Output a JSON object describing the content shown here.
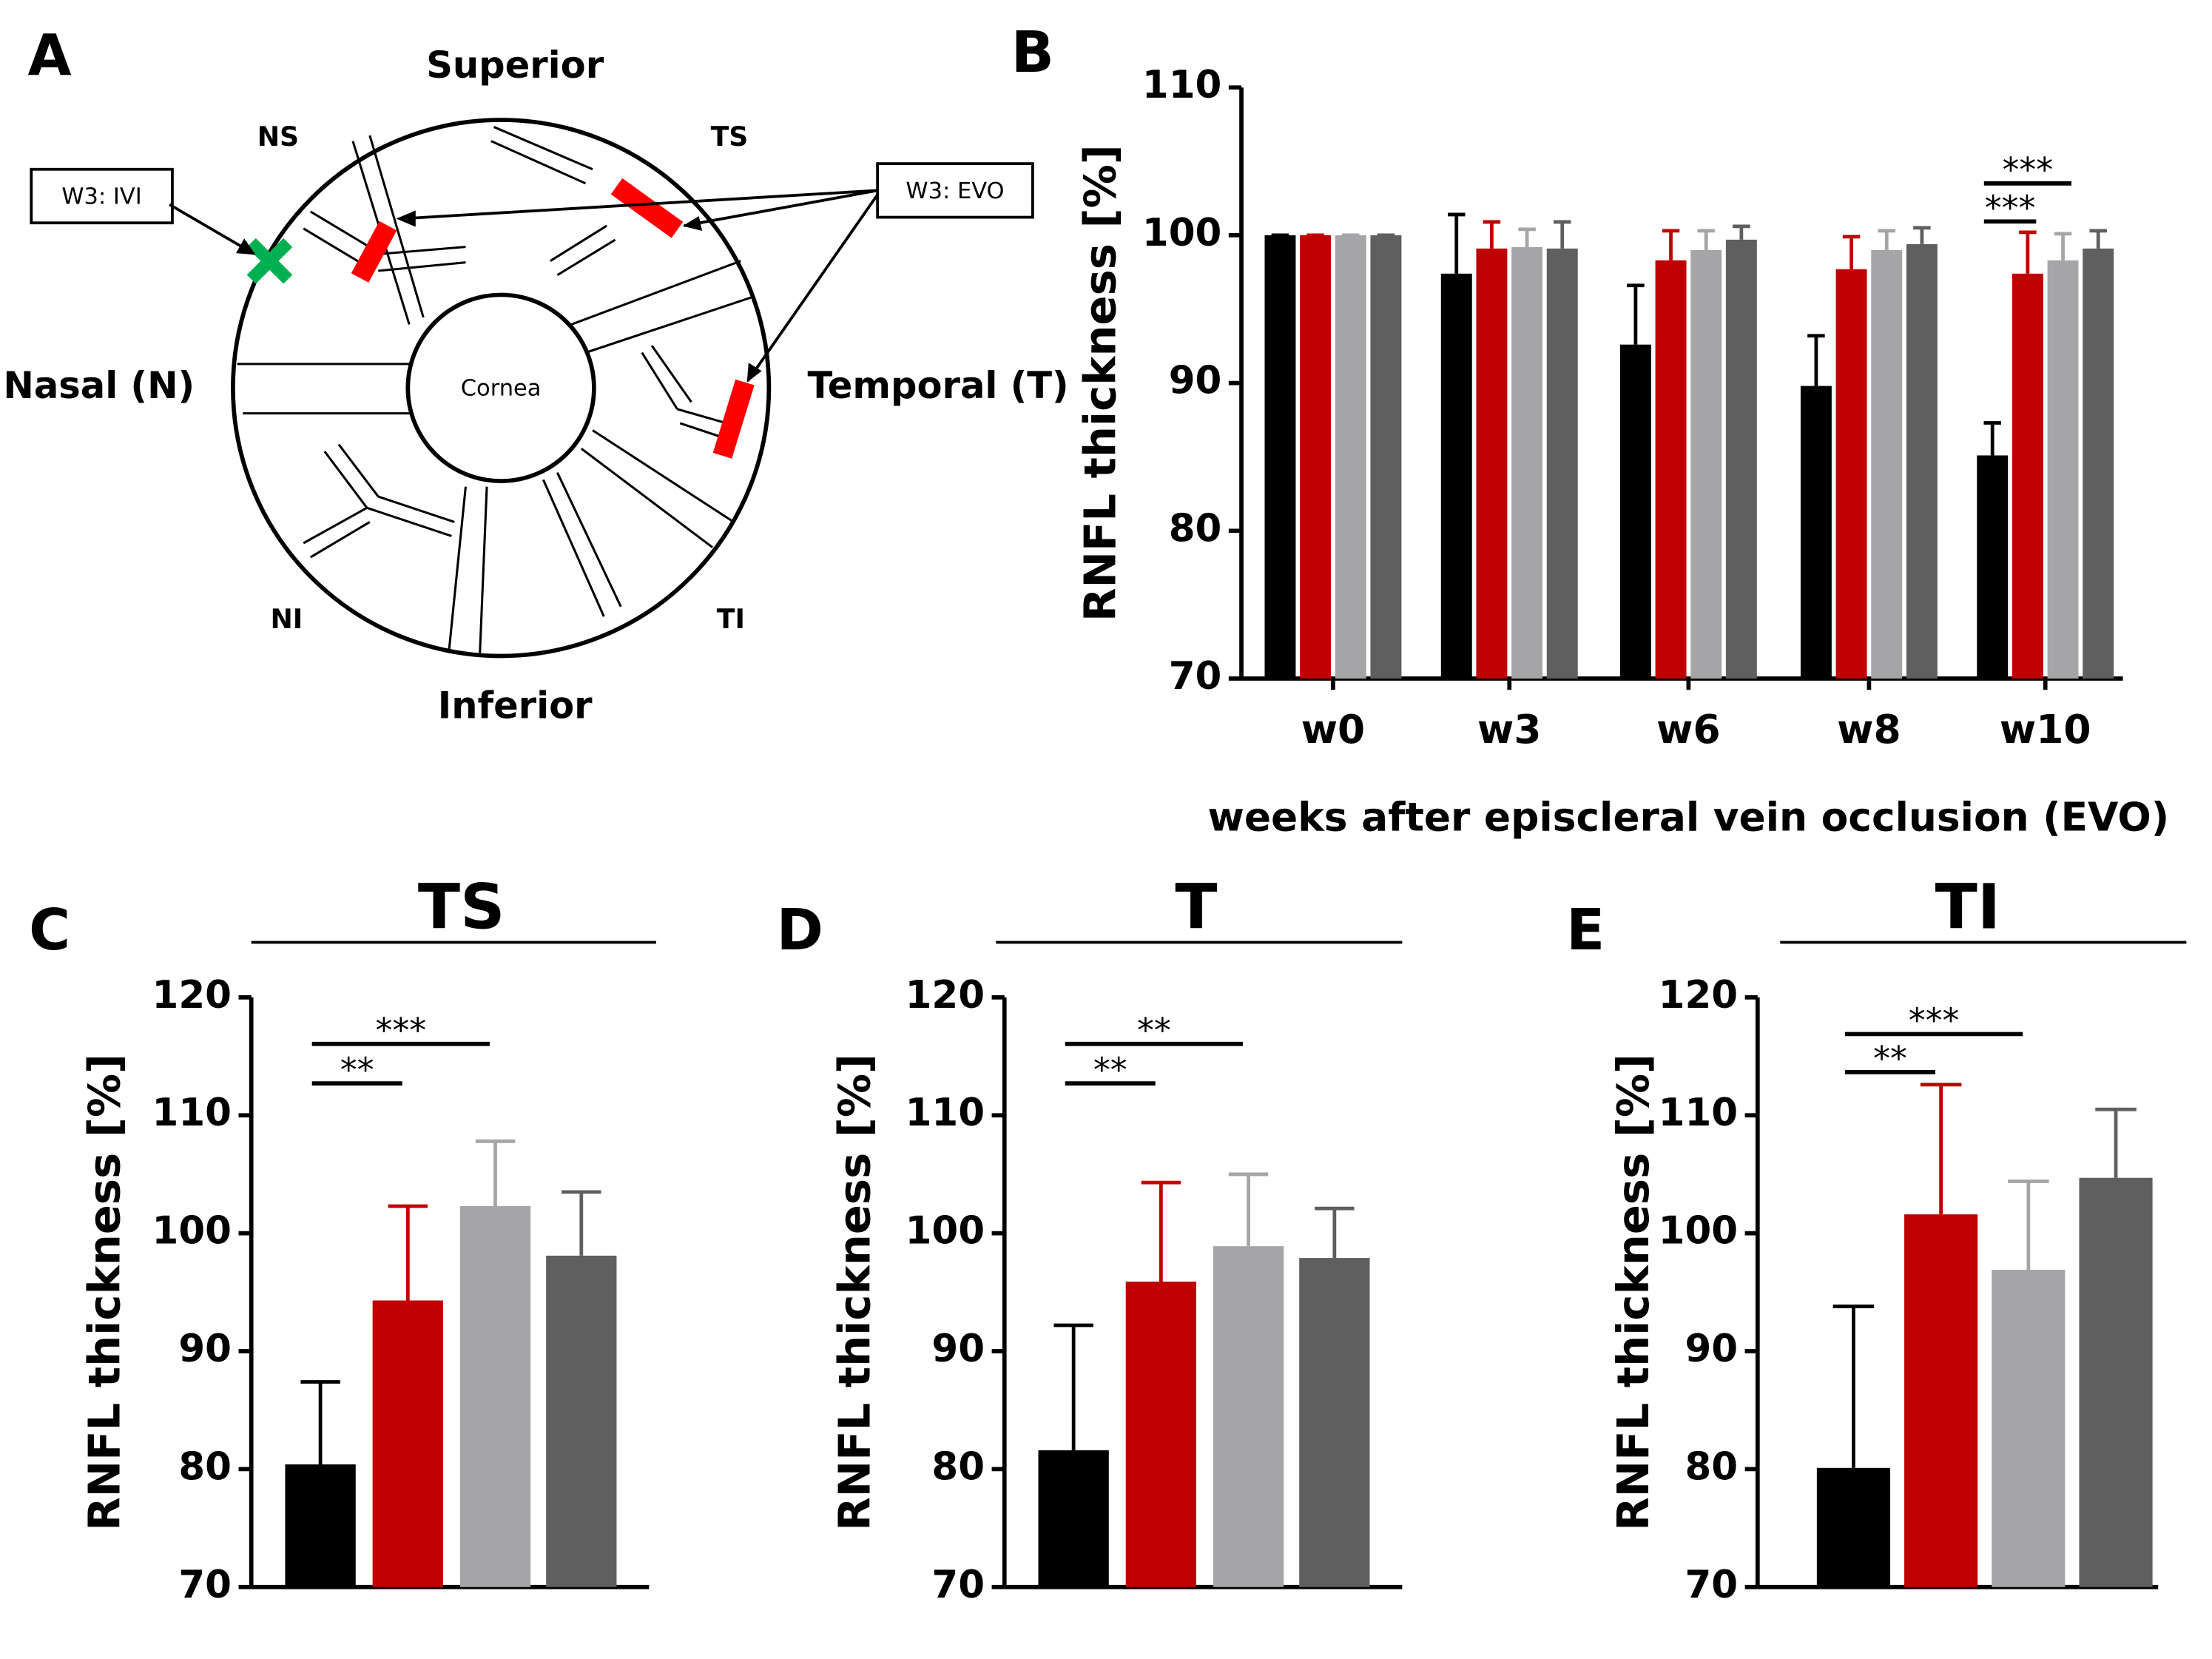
{
  "panel_labels": [
    "A",
    "B",
    "C",
    "D",
    "E"
  ],
  "diagram": {
    "labels": {
      "superior": "Superior",
      "inferior": "Inferior",
      "nasal": "Nasal (N)",
      "temporal": "Temporal (T)",
      "ns": "NS",
      "ts": "TS",
      "ni": "NI",
      "ti": "TI",
      "cornea": "Cornea"
    },
    "callouts": [
      "W3: IVI",
      "W3: EVO"
    ]
  },
  "chart_data": [
    {
      "type": "bar",
      "ylabel": "RNFL thickness [%]",
      "xlabel": "weeks after episcleral vein occlusion (EVO)",
      "categories": [
        "w0",
        "w3",
        "w6",
        "w8",
        "w10"
      ],
      "series": [
        {
          "color": "#000000",
          "values": [
            100,
            97.4,
            92.6,
            89.8,
            85.1
          ],
          "errors": [
            0,
            4,
            4,
            3.4,
            2.2
          ]
        },
        {
          "color": "#c00000",
          "values": [
            100,
            99.1,
            98.3,
            97.7,
            97.4
          ],
          "errors": [
            0,
            1.8,
            2,
            2.2,
            2.8
          ]
        },
        {
          "color": "#a5a5a8",
          "values": [
            100,
            99.2,
            99,
            99,
            98.3
          ],
          "errors": [
            0,
            1.2,
            1.3,
            1.3,
            1.8
          ]
        },
        {
          "color": "#5f5f5f",
          "values": [
            100,
            99.1,
            99.7,
            99.4,
            99.1
          ],
          "errors": [
            0,
            1.8,
            0.9,
            1.1,
            1.2
          ]
        }
      ],
      "ylim": [
        70,
        110
      ],
      "yticks": [
        70,
        80,
        90,
        100,
        110
      ],
      "annotations": [
        "***",
        "***"
      ]
    },
    {
      "type": "bar",
      "title": "TS",
      "ylabel": "RNFL thickness [%]",
      "values": [
        80.4,
        94.3,
        102.3,
        98.1
      ],
      "errors": [
        7,
        8,
        5.5,
        5.4
      ],
      "colors": [
        "#000000",
        "#c00000",
        "#a5a5a8",
        "#5f5f5f"
      ],
      "ylim": [
        70,
        120
      ],
      "yticks": [
        70,
        80,
        90,
        100,
        110,
        120
      ],
      "annotations": [
        "**",
        "***"
      ]
    },
    {
      "type": "bar",
      "title": "T",
      "ylabel": "RNFL thickness [%]",
      "values": [
        81.6,
        95.9,
        98.9,
        97.9
      ],
      "errors": [
        10.6,
        8.4,
        6.1,
        4.2
      ],
      "colors": [
        "#000000",
        "#c00000",
        "#a5a5a8",
        "#5f5f5f"
      ],
      "ylim": [
        70,
        120
      ],
      "yticks": [
        70,
        80,
        90,
        100,
        110,
        120
      ],
      "annotations": [
        "**",
        "**"
      ]
    },
    {
      "type": "bar",
      "title": "TI",
      "ylabel": "RNFL thickness [%]",
      "values": [
        80.1,
        101.6,
        96.9,
        104.7
      ],
      "errors": [
        13.7,
        11,
        7.5,
        5.8
      ],
      "colors": [
        "#000000",
        "#c00000",
        "#a5a5a8",
        "#5f5f5f"
      ],
      "ylim": [
        70,
        120
      ],
      "yticks": [
        70,
        80,
        90,
        100,
        110,
        120
      ],
      "annotations": [
        "**",
        "***"
      ]
    }
  ]
}
